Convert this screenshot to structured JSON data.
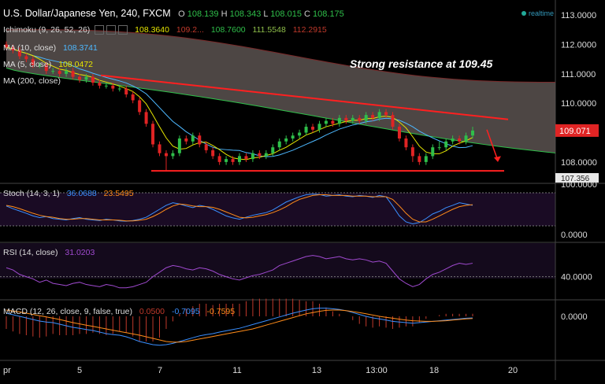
{
  "header": {
    "title": "U.S. Dollar/Japanese Yen, 240, FXCM",
    "ohlc": [
      {
        "k": "O",
        "v": "108.139"
      },
      {
        "k": "H",
        "v": "108.343"
      },
      {
        "k": "L",
        "v": "108.015"
      },
      {
        "k": "C",
        "v": "108.175"
      }
    ],
    "realtime": "realtime"
  },
  "indicators": {
    "ichimoku": {
      "label": "Ichimoku (9, 26, 52, 26)",
      "values": [
        "108.3640",
        "109.2...",
        "108.7600",
        "111.5548",
        "112.2915"
      ],
      "colors": [
        "#e6e600",
        "#c0392b",
        "#2fbf4a",
        "#8fbf4a",
        "#c0392b"
      ]
    },
    "ma10": {
      "label": "MA (10, close)",
      "value": "108.3741",
      "color": "#4db8ff"
    },
    "ma5": {
      "label": "MA (5, close)",
      "value": "108.0472",
      "color": "#e6e600"
    },
    "ma200": {
      "label": "MA (200, close)"
    },
    "stoch": {
      "label": "Stoch (14, 3, 1)",
      "values": [
        "36.0688",
        "23.5495"
      ],
      "colors": [
        "#3a8fff",
        "#ff8c1a"
      ]
    },
    "rsi": {
      "label": "RSI (14, close)",
      "value": "31.0203",
      "color": "#a04ad0"
    },
    "macd": {
      "label": "MACD (12, 26, close, 9, false, true)",
      "values": [
        "0.0500",
        "-0.7095",
        "-0.7595"
      ],
      "colors": [
        "#c0392b",
        "#3a8fff",
        "#ff8c1a"
      ]
    }
  },
  "annotation": "Strong resistance at 109.45",
  "axes": {
    "price_ticks": [
      "113.0000",
      "112.0000",
      "111.0000",
      "110.0000",
      "109.0000",
      "108.0000"
    ],
    "price_values": [
      113,
      112,
      111,
      110,
      109,
      108
    ],
    "stoch_ticks": [
      "100.0000",
      "0.0000"
    ],
    "rsi_ticks": [
      "40.0000"
    ],
    "macd_ticks": [
      "0.0000"
    ],
    "x_ticks": [
      "pr",
      "5",
      "7",
      "11",
      "13",
      "13:00",
      "18",
      "20"
    ],
    "last_price": "109.071",
    "low_tag": "107.356"
  },
  "colors": {
    "up": "#2fbf4a",
    "down": "#e02424",
    "cloud": "#5a5250",
    "resistance": "#ff2020",
    "grid": "#222"
  },
  "chart_data": [
    {
      "type": "candlestick",
      "title": "U.S. Dollar/Japanese Yen, 240, FXCM",
      "ylim": [
        107.3,
        113.3
      ],
      "x": [
        0,
        1,
        2,
        3,
        4,
        5,
        6,
        7,
        8,
        9,
        10,
        11,
        12,
        13,
        14,
        15,
        16,
        17,
        18,
        19,
        20,
        21,
        22,
        23,
        24,
        25,
        26,
        27,
        28,
        29,
        30,
        31,
        32,
        33,
        34,
        35,
        36,
        37,
        38,
        39,
        40,
        41,
        42,
        43,
        44,
        45,
        46,
        47,
        48,
        49,
        50,
        51,
        52,
        53,
        54,
        55,
        56,
        57,
        58,
        59,
        60,
        61,
        62,
        63,
        64,
        65,
        66,
        67,
        68,
        69,
        70
      ],
      "open": [
        112.0,
        111.9,
        111.8,
        111.6,
        111.5,
        111.3,
        111.3,
        111.1,
        111.1,
        111.0,
        111.1,
        110.9,
        110.8,
        110.9,
        110.7,
        110.6,
        110.6,
        110.5,
        110.5,
        110.3,
        110.1,
        109.7,
        109.3,
        108.6,
        108.3,
        108.2,
        108.3,
        108.8,
        108.7,
        108.9,
        108.6,
        108.4,
        108.2,
        108.0,
        108.1,
        108.0,
        108.2,
        108.1,
        108.3,
        108.2,
        108.3,
        108.5,
        108.7,
        108.8,
        108.9,
        109.0,
        109.2,
        109.1,
        109.3,
        109.4,
        109.3,
        109.5,
        109.4,
        109.5,
        109.4,
        109.6,
        109.5,
        109.7,
        109.6,
        109.2,
        108.8,
        108.5,
        108.2,
        108.0,
        108.2,
        108.5,
        108.5,
        108.7,
        108.8,
        108.7,
        108.9
      ],
      "close": [
        111.9,
        111.8,
        111.6,
        111.5,
        111.3,
        111.3,
        111.1,
        111.1,
        111.0,
        111.1,
        110.9,
        110.8,
        110.9,
        110.7,
        110.6,
        110.6,
        110.5,
        110.5,
        110.3,
        110.1,
        109.7,
        109.3,
        108.6,
        108.3,
        108.2,
        108.3,
        108.8,
        108.7,
        108.9,
        108.6,
        108.4,
        108.2,
        108.0,
        108.1,
        108.0,
        108.2,
        108.1,
        108.3,
        108.2,
        108.3,
        108.5,
        108.7,
        108.8,
        108.9,
        109.0,
        109.2,
        109.1,
        109.3,
        109.4,
        109.3,
        109.5,
        109.4,
        109.5,
        109.4,
        109.6,
        109.5,
        109.7,
        109.6,
        109.2,
        108.8,
        108.5,
        108.2,
        108.0,
        108.2,
        108.5,
        108.5,
        108.7,
        108.8,
        108.7,
        108.9,
        109.07
      ],
      "high": [
        112.1,
        112.0,
        111.9,
        111.7,
        111.6,
        111.4,
        111.4,
        111.2,
        111.2,
        111.2,
        111.2,
        111.0,
        111.0,
        111.0,
        110.8,
        110.7,
        110.7,
        110.6,
        110.6,
        110.4,
        110.2,
        109.8,
        109.4,
        108.7,
        108.4,
        108.4,
        108.9,
        108.9,
        109.0,
        109.0,
        108.7,
        108.5,
        108.3,
        108.2,
        108.2,
        108.3,
        108.3,
        108.4,
        108.4,
        108.4,
        108.6,
        108.8,
        108.9,
        109.0,
        109.1,
        109.3,
        109.3,
        109.4,
        109.5,
        109.5,
        109.6,
        109.6,
        109.6,
        109.6,
        109.7,
        109.7,
        109.8,
        109.8,
        109.7,
        109.3,
        108.9,
        108.6,
        108.3,
        108.3,
        108.6,
        108.7,
        108.8,
        108.9,
        108.9,
        109.0,
        109.2
      ],
      "low": [
        111.8,
        111.7,
        111.5,
        111.4,
        111.2,
        111.2,
        111.0,
        111.0,
        110.9,
        110.9,
        110.8,
        110.7,
        110.7,
        110.6,
        110.5,
        110.5,
        110.4,
        110.4,
        110.2,
        110.0,
        109.6,
        109.2,
        108.5,
        108.2,
        107.7,
        108.1,
        108.2,
        108.6,
        108.6,
        108.5,
        108.3,
        108.1,
        107.9,
        107.9,
        107.9,
        107.9,
        108.0,
        108.0,
        108.1,
        108.1,
        108.2,
        108.4,
        108.6,
        108.7,
        108.8,
        108.9,
        109.0,
        109.0,
        109.2,
        109.2,
        109.2,
        109.3,
        109.3,
        109.3,
        109.3,
        109.4,
        109.4,
        109.5,
        109.1,
        108.7,
        108.4,
        108.0,
        107.9,
        107.9,
        108.1,
        108.4,
        108.4,
        108.6,
        108.6,
        108.6,
        108.8
      ]
    },
    {
      "type": "line",
      "title": "Stoch (14, 3, 1)",
      "ylim": [
        0,
        100
      ],
      "series": [
        {
          "name": "%K",
          "values": [
            60,
            52,
            45,
            38,
            30,
            25,
            28,
            22,
            20,
            18,
            22,
            25,
            20,
            18,
            16,
            20,
            18,
            15,
            14,
            16,
            20,
            26,
            38,
            50,
            62,
            70,
            66,
            60,
            55,
            62,
            58,
            50,
            40,
            30,
            24,
            20,
            26,
            32,
            36,
            40,
            48,
            60,
            72,
            80,
            88,
            94,
            96,
            95,
            90,
            92,
            94,
            90,
            88,
            92,
            90,
            86,
            92,
            88,
            60,
            30,
            12,
            6,
            10,
            22,
            36,
            44,
            55,
            62,
            70,
            66,
            62
          ]
        },
        {
          "name": "%D",
          "values": [
            62,
            58,
            52,
            45,
            38,
            32,
            28,
            26,
            22,
            20,
            20,
            22,
            22,
            20,
            18,
            18,
            18,
            17,
            15,
            15,
            17,
            20,
            28,
            38,
            50,
            60,
            66,
            64,
            60,
            58,
            58,
            56,
            50,
            42,
            34,
            26,
            24,
            26,
            30,
            34,
            40,
            48,
            58,
            70,
            80,
            86,
            92,
            94,
            94,
            92,
            92,
            92,
            90,
            90,
            90,
            88,
            88,
            88,
            80,
            60,
            38,
            20,
            12,
            12,
            20,
            30,
            40,
            50,
            58,
            62,
            64
          ]
        }
      ]
    },
    {
      "type": "line",
      "title": "RSI (14, close)",
      "series": [
        {
          "name": "RSI",
          "values": [
            48,
            46,
            42,
            40,
            38,
            35,
            37,
            34,
            33,
            32,
            34,
            35,
            33,
            32,
            31,
            33,
            32,
            30,
            30,
            31,
            33,
            35,
            40,
            44,
            48,
            50,
            49,
            47,
            46,
            48,
            47,
            45,
            42,
            40,
            38,
            37,
            39,
            41,
            42,
            44,
            46,
            50,
            52,
            54,
            56,
            58,
            59,
            58,
            56,
            57,
            58,
            56,
            55,
            56,
            55,
            53,
            54,
            52,
            45,
            38,
            34,
            31,
            33,
            38,
            42,
            44,
            47,
            50,
            52,
            51,
            52
          ]
        }
      ]
    },
    {
      "type": "line",
      "title": "MACD (12, 26, close, 9, false, true)",
      "series": [
        {
          "name": "MACD",
          "values": [
            0.1,
            0.05,
            0,
            -0.05,
            -0.1,
            -0.15,
            -0.18,
            -0.2,
            -0.25,
            -0.3,
            -0.35,
            -0.38,
            -0.42,
            -0.45,
            -0.5,
            -0.55,
            -0.58,
            -0.6,
            -0.65,
            -0.72,
            -0.8,
            -0.85,
            -0.9,
            -0.92,
            -0.9,
            -0.86,
            -0.8,
            -0.74,
            -0.68,
            -0.62,
            -0.58,
            -0.55,
            -0.5,
            -0.46,
            -0.42,
            -0.38,
            -0.32,
            -0.26,
            -0.2,
            -0.14,
            -0.08,
            -0.02,
            0.04,
            0.1,
            0.15,
            0.2,
            0.24,
            0.26,
            0.26,
            0.24,
            0.22,
            0.18,
            0.12,
            0.06,
            0.0,
            -0.05,
            -0.08,
            -0.12,
            -0.16,
            -0.18,
            -0.2,
            -0.22,
            -0.2,
            -0.18,
            -0.16,
            -0.14,
            -0.12,
            -0.1,
            -0.08,
            -0.06,
            -0.05
          ]
        },
        {
          "name": "Signal",
          "values": [
            0.2,
            0.17,
            0.14,
            0.1,
            0.06,
            0.02,
            -0.02,
            -0.06,
            -0.1,
            -0.15,
            -0.2,
            -0.24,
            -0.28,
            -0.32,
            -0.36,
            -0.4,
            -0.44,
            -0.48,
            -0.52,
            -0.56,
            -0.6,
            -0.65,
            -0.7,
            -0.75,
            -0.8,
            -0.82,
            -0.82,
            -0.8,
            -0.76,
            -0.72,
            -0.68,
            -0.64,
            -0.6,
            -0.56,
            -0.52,
            -0.48,
            -0.44,
            -0.4,
            -0.34,
            -0.28,
            -0.22,
            -0.16,
            -0.1,
            -0.04,
            0.02,
            0.08,
            0.12,
            0.16,
            0.19,
            0.2,
            0.2,
            0.18,
            0.15,
            0.12,
            0.08,
            0.04,
            0.0,
            -0.03,
            -0.06,
            -0.09,
            -0.12,
            -0.14,
            -0.15,
            -0.16,
            -0.16,
            -0.15,
            -0.14,
            -0.12,
            -0.1,
            -0.08,
            -0.07
          ]
        }
      ]
    }
  ]
}
